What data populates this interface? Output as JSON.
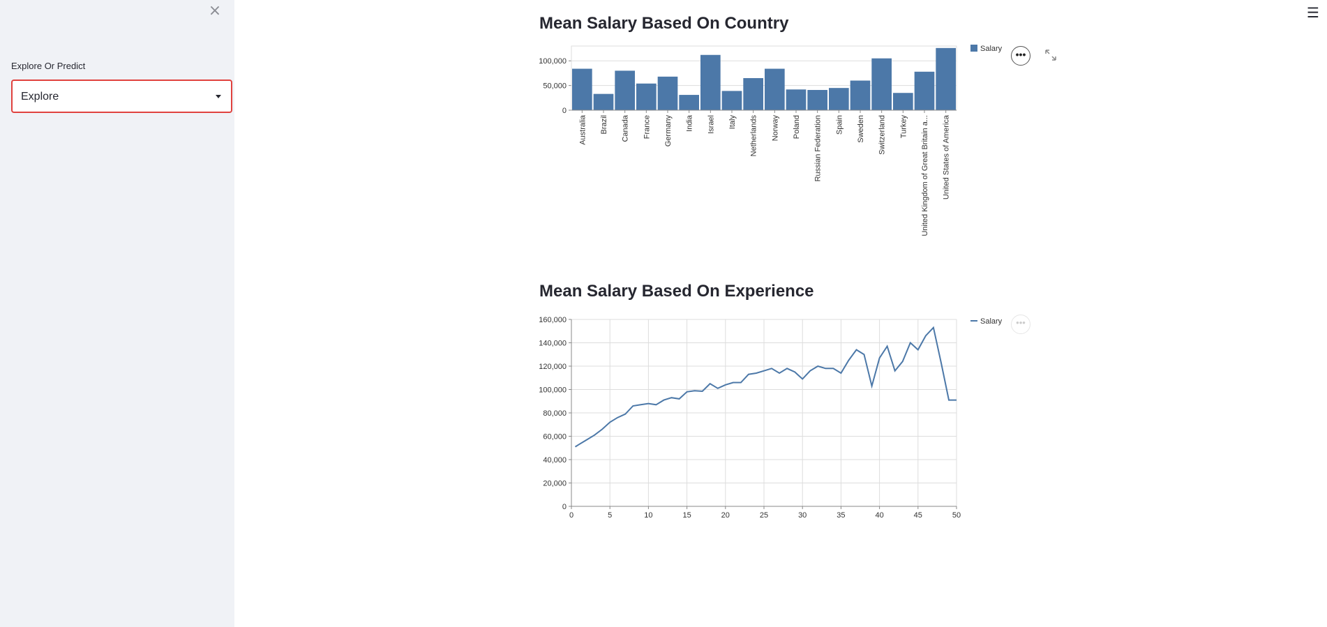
{
  "sidebar": {
    "close_icon": "×",
    "select_label": "Explore Or Predict",
    "select_value": "Explore"
  },
  "header": {
    "menu_icon": "☰"
  },
  "charts": {
    "country": {
      "title": "Mean Salary Based On Country",
      "legend": "Salary",
      "menu_label": "•••"
    },
    "experience": {
      "title": "Mean Salary Based On Experience",
      "legend": "Salary",
      "menu_label": "•••"
    }
  },
  "chart_data": [
    {
      "type": "bar",
      "title": "Mean Salary Based On Country",
      "categories": [
        "Australia",
        "Brazil",
        "Canada",
        "France",
        "Germany",
        "India",
        "Israel",
        "Italy",
        "Netherlands",
        "Norway",
        "Poland",
        "Russian Federation",
        "Spain",
        "Sweden",
        "Switzerland",
        "Turkey",
        "United Kingdom of Great Britain a...",
        "United States of America"
      ],
      "series": [
        {
          "name": "Salary",
          "values": [
            84000,
            33000,
            80000,
            54000,
            68000,
            31000,
            112000,
            39000,
            65000,
            84000,
            42000,
            41000,
            45000,
            60000,
            105000,
            35000,
            78000,
            126000
          ]
        }
      ],
      "ylim": [
        0,
        130000
      ],
      "yticks": [
        0,
        50000,
        100000
      ],
      "ytick_labels": [
        "0",
        "50,000",
        "100,000"
      ],
      "legend": "top-right",
      "color": "#4c78a8"
    },
    {
      "type": "line",
      "title": "Mean Salary Based On Experience",
      "x": [
        0.5,
        1,
        2,
        3,
        4,
        5,
        6,
        7,
        8,
        9,
        10,
        11,
        12,
        13,
        14,
        15,
        16,
        17,
        18,
        19,
        20,
        21,
        22,
        23,
        24,
        25,
        26,
        27,
        28,
        29,
        30,
        31,
        32,
        33,
        34,
        35,
        36,
        37,
        38,
        39,
        40,
        41,
        42,
        43,
        44,
        45,
        46,
        47,
        48,
        49,
        50
      ],
      "series": [
        {
          "name": "Salary",
          "values": [
            51000,
            53000,
            57000,
            61000,
            66000,
            72000,
            76000,
            79000,
            86000,
            87000,
            88000,
            87000,
            91000,
            93000,
            92000,
            98000,
            99000,
            98500,
            105000,
            101000,
            104000,
            106000,
            106000,
            113000,
            114000,
            116000,
            118000,
            114000,
            118000,
            115000,
            109000,
            116000,
            120000,
            118000,
            118000,
            114000,
            125000,
            134000,
            130000,
            103000,
            127000,
            137000,
            116000,
            124000,
            140000,
            134000,
            146000,
            153000,
            123000,
            91000,
            91000
          ]
        }
      ],
      "xlim": [
        0,
        50
      ],
      "ylim": [
        0,
        160000
      ],
      "xticks": [
        0,
        5,
        10,
        15,
        20,
        25,
        30,
        35,
        40,
        45,
        50
      ],
      "xtick_labels": [
        "0",
        "5",
        "10",
        "15",
        "20",
        "25",
        "30",
        "35",
        "40",
        "45",
        "50"
      ],
      "yticks": [
        0,
        20000,
        40000,
        60000,
        80000,
        100000,
        120000,
        140000,
        160000
      ],
      "ytick_labels": [
        "0",
        "20,000",
        "40,000",
        "60,000",
        "80,000",
        "100,000",
        "120,000",
        "140,000",
        "160,000"
      ],
      "grid": true,
      "legend": "top-right",
      "color": "#4c78a8"
    }
  ]
}
